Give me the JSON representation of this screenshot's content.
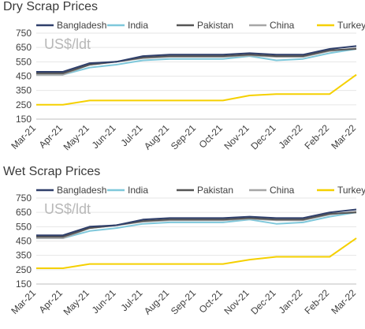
{
  "chart_data": [
    {
      "type": "line",
      "title": "Dry Scrap Prices",
      "unit_label": "US$/ldt",
      "x": [
        "Mar-21",
        "Apr-21",
        "May-21",
        "Jun-21",
        "Jul-21",
        "Aug-21",
        "Sep-21",
        "Oct-21",
        "Nov-21",
        "Dec-21",
        "Jan-22",
        "Feb-22",
        "Mar-22"
      ],
      "ylim": [
        150,
        750
      ],
      "yticks": [
        150,
        250,
        350,
        450,
        550,
        650,
        750
      ],
      "grid": true,
      "legend_position": "top",
      "series": [
        {
          "name": "Bangladesh",
          "color": "#2f3f6b",
          "values": [
            480,
            480,
            540,
            550,
            590,
            600,
            600,
            600,
            610,
            600,
            600,
            640,
            660
          ]
        },
        {
          "name": "India",
          "color": "#7fc8db",
          "values": [
            460,
            460,
            510,
            530,
            560,
            570,
            570,
            570,
            590,
            560,
            570,
            610,
            640
          ]
        },
        {
          "name": "Pakistan",
          "color": "#555555",
          "values": [
            470,
            470,
            530,
            550,
            580,
            590,
            590,
            590,
            600,
            590,
            590,
            630,
            640
          ]
        },
        {
          "name": "China",
          "color": "#a6a6a6",
          "values": [
            460,
            460,
            530,
            550,
            575,
            585,
            585,
            585,
            595,
            585,
            585,
            625,
            645
          ]
        },
        {
          "name": "Turkey",
          "color": "#f5d000",
          "values": [
            250,
            250,
            280,
            280,
            280,
            280,
            280,
            280,
            315,
            325,
            325,
            325,
            460
          ]
        }
      ]
    },
    {
      "type": "line",
      "title": "Wet Scrap Prices",
      "unit_label": "US$/ldt",
      "x": [
        "Mar-21",
        "Apr-21",
        "May-21",
        "Jun-21",
        "Jul-21",
        "Aug-21",
        "Sep-21",
        "Oct-21",
        "Nov-21",
        "Dec-21",
        "Jan-22",
        "Feb-22",
        "Mar-22"
      ],
      "ylim": [
        150,
        750
      ],
      "yticks": [
        150,
        250,
        350,
        450,
        550,
        650,
        750
      ],
      "grid": true,
      "legend_position": "top",
      "series": [
        {
          "name": "Bangladesh",
          "color": "#2f3f6b",
          "values": [
            490,
            490,
            550,
            560,
            600,
            610,
            610,
            610,
            620,
            610,
            610,
            650,
            670
          ]
        },
        {
          "name": "India",
          "color": "#7fc8db",
          "values": [
            470,
            470,
            520,
            540,
            570,
            580,
            580,
            580,
            600,
            570,
            580,
            620,
            650
          ]
        },
        {
          "name": "Pakistan",
          "color": "#555555",
          "values": [
            480,
            480,
            540,
            560,
            590,
            600,
            600,
            600,
            610,
            600,
            600,
            640,
            650
          ]
        },
        {
          "name": "China",
          "color": "#a6a6a6",
          "values": [
            470,
            470,
            540,
            560,
            585,
            595,
            595,
            595,
            605,
            595,
            595,
            635,
            655
          ]
        },
        {
          "name": "Turkey",
          "color": "#f5d000",
          "values": [
            260,
            260,
            290,
            290,
            290,
            290,
            290,
            290,
            320,
            340,
            340,
            340,
            470
          ]
        }
      ]
    }
  ]
}
